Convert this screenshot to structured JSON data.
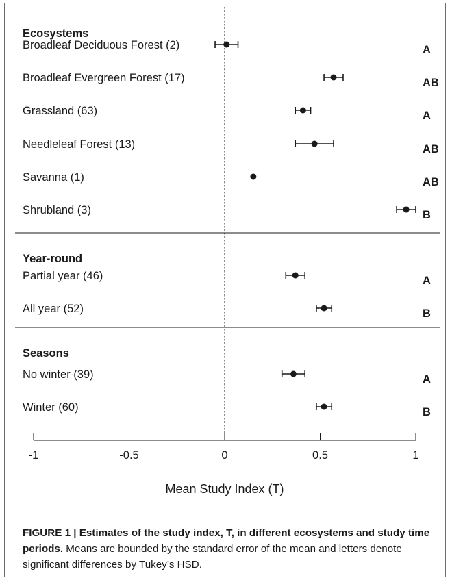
{
  "chart_data": {
    "type": "scatter",
    "xlabel": "Mean Study Index (T)",
    "xlim": [
      -1,
      1
    ],
    "xticks": [
      -1,
      -0.5,
      0,
      0.5,
      1
    ],
    "xtick_labels": [
      "-1",
      "-0.5",
      "0",
      "0.5",
      "1"
    ],
    "reference_line_x": 0,
    "groups": [
      {
        "heading": "Ecosystems",
        "rows": [
          {
            "label": "Broadleaf Deciduous Forest (2)",
            "mean": 0.01,
            "se": 0.06,
            "letter": "A"
          },
          {
            "label": "Broadleaf Evergreen Forest (17)",
            "mean": 0.57,
            "se": 0.05,
            "letter": "AB"
          },
          {
            "label": "Grassland (63)",
            "mean": 0.41,
            "se": 0.04,
            "letter": "A"
          },
          {
            "label": "Needleleaf Forest (13)",
            "mean": 0.47,
            "se": 0.1,
            "letter": "AB"
          },
          {
            "label": "Savanna (1)",
            "mean": 0.15,
            "se": 0,
            "letter": "AB"
          },
          {
            "label": "Shrubland (3)",
            "mean": 0.95,
            "se": 0.05,
            "letter": "B"
          }
        ]
      },
      {
        "heading": "Year-round",
        "rows": [
          {
            "label": "Partial year (46)",
            "mean": 0.37,
            "se": 0.05,
            "letter": "A"
          },
          {
            "label": "All year (52)",
            "mean": 0.52,
            "se": 0.04,
            "letter": "B"
          }
        ]
      },
      {
        "heading": "Seasons",
        "rows": [
          {
            "label": "No winter (39)",
            "mean": 0.36,
            "se": 0.06,
            "letter": "A"
          },
          {
            "label": "Winter (60)",
            "mean": 0.52,
            "se": 0.04,
            "letter": "B"
          }
        ]
      }
    ]
  },
  "caption": {
    "bold": "FIGURE 1 | Estimates of the study index, T, in different ecosystems and study time periods.",
    "normal": " Means are bounded by the standard error of the mean and letters denote significant differences by Tukey’s HSD."
  }
}
